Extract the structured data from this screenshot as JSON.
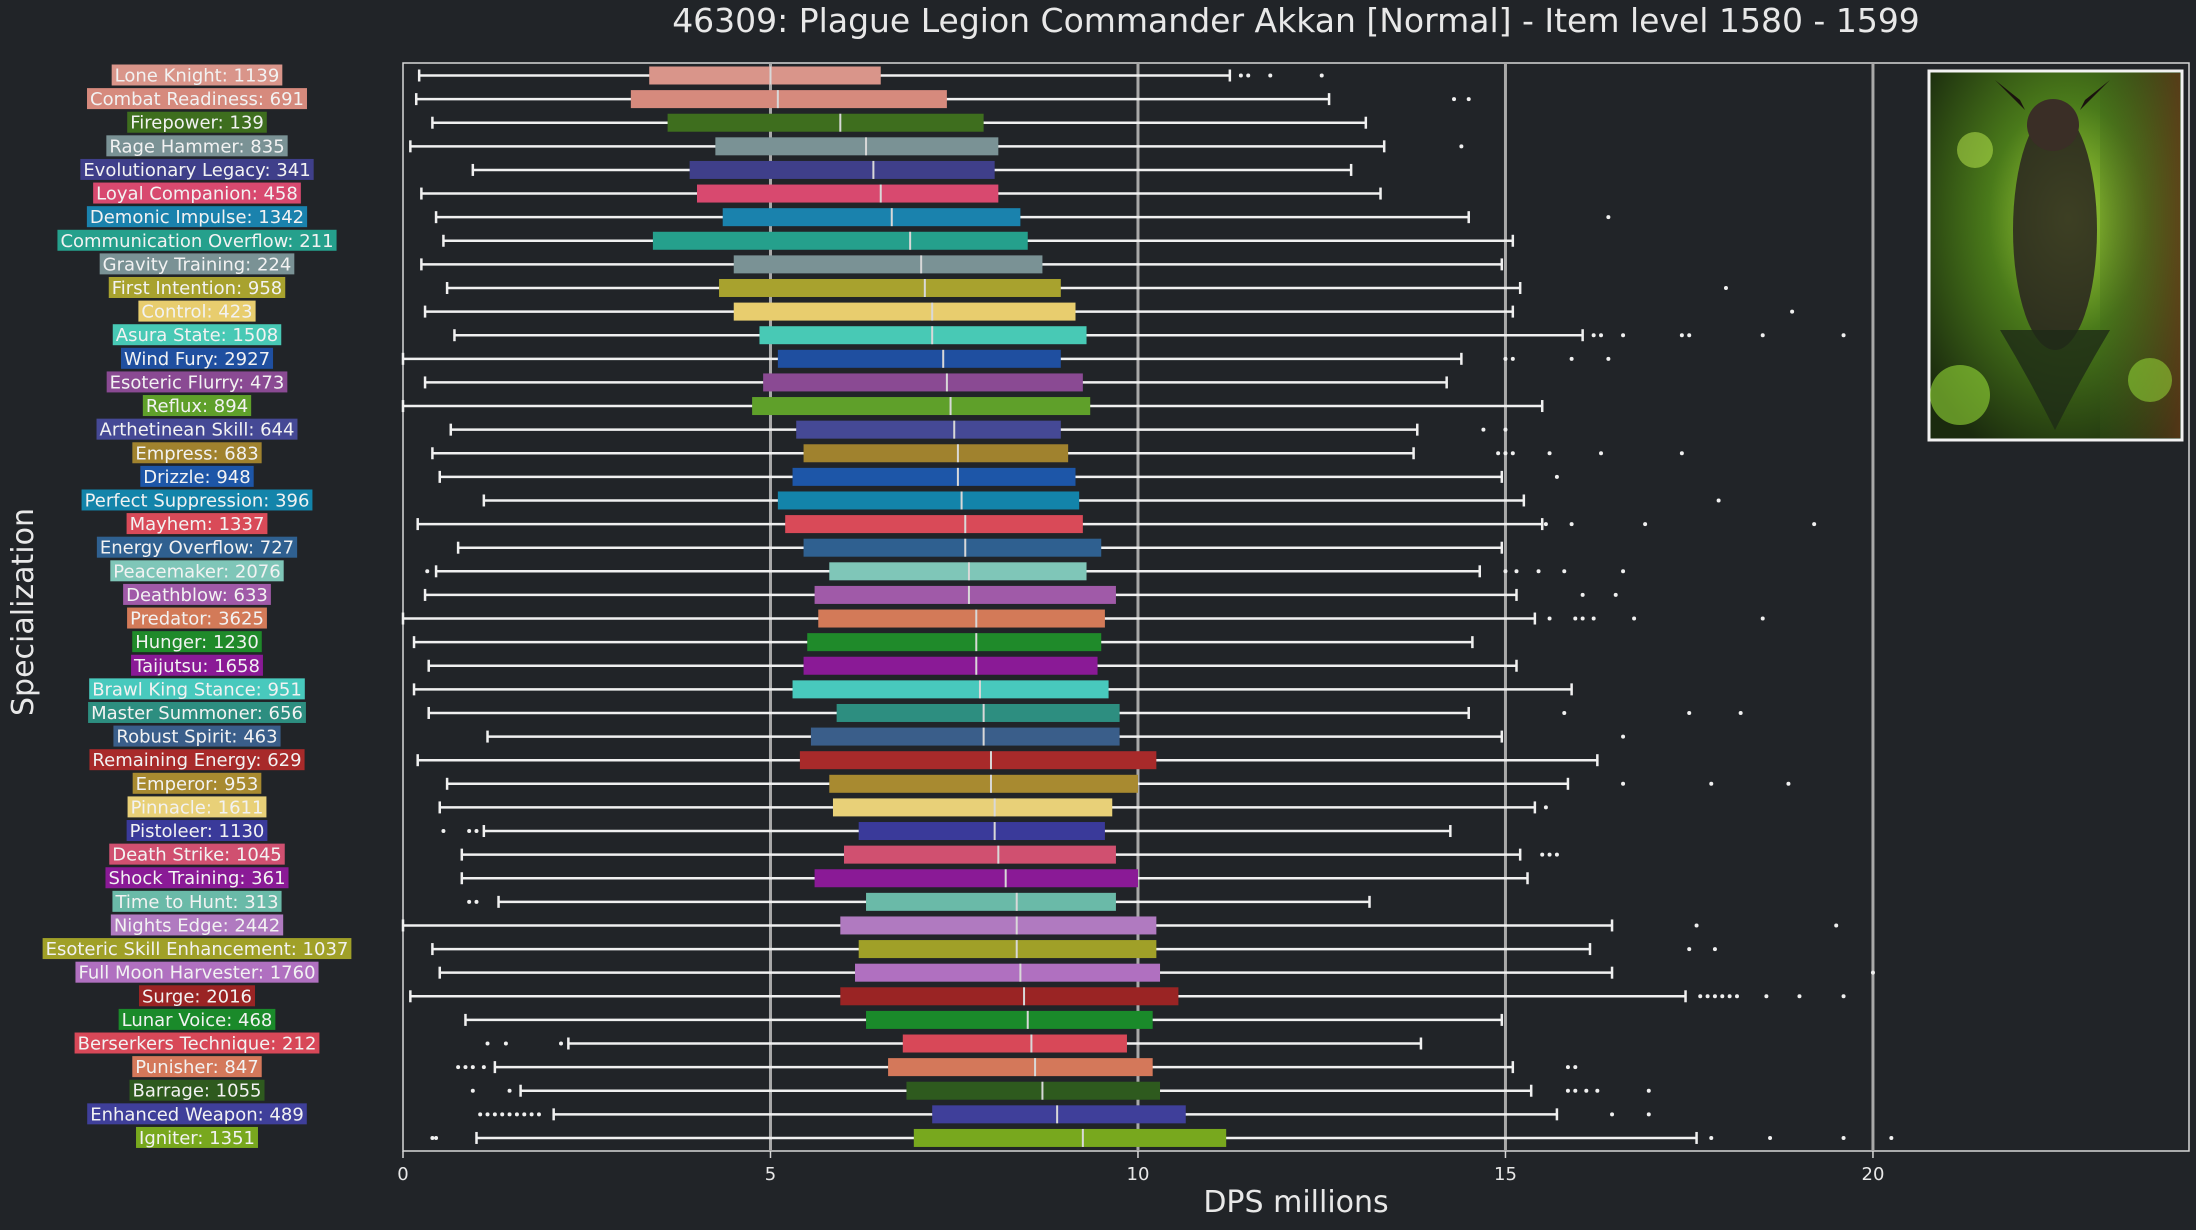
{
  "chart_data": {
    "type": "box",
    "title": "46309: Plague Legion Commander Akkan [Normal] - Item level 1580 - 1599",
    "xlabel": "DPS millions",
    "ylabel": "Specialization",
    "xlim": [
      0,
      24.3
    ],
    "xticks": [
      0,
      5,
      10,
      15,
      20
    ],
    "vlines": [
      5,
      10,
      15,
      20
    ],
    "grid": false,
    "thumbnail": {
      "present": true,
      "position": "top-right",
      "description_icon": "boss-portrait-image"
    },
    "series": [
      {
        "label": "Lone Knight: 1139",
        "color": "#d9958a",
        "q1": 3.35,
        "median": 5.0,
        "q3": 6.5,
        "whisker_low": 0.22,
        "whisker_high": 11.25,
        "outliers": [
          11.4,
          11.5,
          11.8,
          12.5
        ]
      },
      {
        "label": "Combat Readiness: 691",
        "color": "#d68a7d",
        "q1": 3.1,
        "median": 5.1,
        "q3": 7.4,
        "whisker_low": 0.18,
        "whisker_high": 12.6,
        "outliers": [
          14.3,
          14.5
        ]
      },
      {
        "label": "Firepower: 139",
        "color": "#3e6e1e",
        "q1": 3.6,
        "median": 5.95,
        "q3": 7.9,
        "whisker_low": 0.4,
        "whisker_high": 13.1,
        "outliers": []
      },
      {
        "label": "Rage Hammer: 835",
        "color": "#7a9295",
        "q1": 4.25,
        "median": 6.3,
        "q3": 8.1,
        "whisker_low": 0.1,
        "whisker_high": 13.35,
        "outliers": [
          14.4
        ]
      },
      {
        "label": "Evolutionary Legacy: 341",
        "color": "#3f3f8a",
        "q1": 3.9,
        "median": 6.4,
        "q3": 8.05,
        "whisker_low": 0.95,
        "whisker_high": 12.9,
        "outliers": []
      },
      {
        "label": "Loyal Companion: 458",
        "color": "#d8496f",
        "q1": 4.0,
        "median": 6.5,
        "q3": 8.1,
        "whisker_low": 0.25,
        "whisker_high": 13.3,
        "outliers": []
      },
      {
        "label": "Demonic Impulse: 1342",
        "color": "#1a82ad",
        "q1": 4.35,
        "median": 6.65,
        "q3": 8.4,
        "whisker_low": 0.45,
        "whisker_high": 14.5,
        "outliers": [
          16.4
        ]
      },
      {
        "label": "Communication Overflow: 211",
        "color": "#25a08c",
        "q1": 3.4,
        "median": 6.9,
        "q3": 8.5,
        "whisker_low": 0.55,
        "whisker_high": 15.1,
        "outliers": []
      },
      {
        "label": "Gravity Training: 224",
        "color": "#7a9295",
        "q1": 4.5,
        "median": 7.05,
        "q3": 8.7,
        "whisker_low": 0.25,
        "whisker_high": 14.95,
        "outliers": []
      },
      {
        "label": "First Intention: 958",
        "color": "#a8a22e",
        "q1": 4.3,
        "median": 7.1,
        "q3": 8.95,
        "whisker_low": 0.6,
        "whisker_high": 15.2,
        "outliers": [
          18.0
        ]
      },
      {
        "label": "Control: 423",
        "color": "#e8cd6e",
        "q1": 4.5,
        "median": 7.2,
        "q3": 9.15,
        "whisker_low": 0.3,
        "whisker_high": 15.1,
        "outliers": [
          18.9
        ]
      },
      {
        "label": "Asura State: 1508",
        "color": "#48c9b5",
        "q1": 4.85,
        "median": 7.2,
        "q3": 9.3,
        "whisker_low": 0.7,
        "whisker_high": 16.05,
        "outliers": [
          16.2,
          16.3,
          16.6,
          17.4,
          17.5,
          18.5,
          19.6
        ]
      },
      {
        "label": "Wind Fury: 2927",
        "color": "#1f4fa0",
        "q1": 5.1,
        "median": 7.35,
        "q3": 8.95,
        "whisker_low": 0.0,
        "whisker_high": 14.4,
        "outliers": [
          15.0,
          15.1,
          15.9,
          16.4
        ]
      },
      {
        "label": "Esoteric Flurry: 473",
        "color": "#8a4a93",
        "q1": 4.9,
        "median": 7.4,
        "q3": 9.25,
        "whisker_low": 0.3,
        "whisker_high": 14.2,
        "outliers": []
      },
      {
        "label": "Reflux: 894",
        "color": "#5fa02a",
        "q1": 4.75,
        "median": 7.45,
        "q3": 9.35,
        "whisker_low": 0.0,
        "whisker_high": 15.5,
        "outliers": []
      },
      {
        "label": "Arthetinean Skill: 644",
        "color": "#454995",
        "q1": 5.35,
        "median": 7.5,
        "q3": 8.95,
        "whisker_low": 0.65,
        "whisker_high": 13.8,
        "outliers": [
          14.7,
          15.0
        ]
      },
      {
        "label": "Empress: 683",
        "color": "#a0822e",
        "q1": 5.45,
        "median": 7.55,
        "q3": 9.05,
        "whisker_low": 0.4,
        "whisker_high": 13.75,
        "outliers": [
          14.9,
          15.0,
          15.1,
          15.6,
          16.3,
          17.4
        ]
      },
      {
        "label": "Drizzle: 948",
        "color": "#1d56a8",
        "q1": 5.3,
        "median": 7.55,
        "q3": 9.15,
        "whisker_low": 0.5,
        "whisker_high": 14.95,
        "outliers": [
          15.7
        ]
      },
      {
        "label": "Perfect Suppression: 396",
        "color": "#1384aa",
        "q1": 5.1,
        "median": 7.6,
        "q3": 9.2,
        "whisker_low": 1.1,
        "whisker_high": 15.25,
        "outliers": [
          17.9
        ]
      },
      {
        "label": "Mayhem: 1337",
        "color": "#d94a58",
        "q1": 5.2,
        "median": 7.65,
        "q3": 9.25,
        "whisker_low": 0.2,
        "whisker_high": 15.5,
        "outliers": [
          15.55,
          15.9,
          16.9,
          19.2
        ]
      },
      {
        "label": "Energy Overflow: 727",
        "color": "#2f6090",
        "q1": 5.45,
        "median": 7.65,
        "q3": 9.5,
        "whisker_low": 0.75,
        "whisker_high": 14.95,
        "outliers": []
      },
      {
        "label": "Peacemaker: 2076",
        "color": "#7fc6b8",
        "q1": 5.8,
        "median": 7.7,
        "q3": 9.3,
        "whisker_low": 0.45,
        "whisker_high": 14.65,
        "outliers": [
          0.33,
          15.0,
          15.15,
          15.45,
          15.8,
          16.6
        ]
      },
      {
        "label": "Deathblow: 633",
        "color": "#a05aa8",
        "q1": 5.6,
        "median": 7.7,
        "q3": 9.7,
        "whisker_low": 0.3,
        "whisker_high": 15.15,
        "outliers": [
          16.05,
          16.5
        ]
      },
      {
        "label": "Predator: 3625",
        "color": "#d37a58",
        "q1": 5.65,
        "median": 7.8,
        "q3": 9.55,
        "whisker_low": 0.0,
        "whisker_high": 15.4,
        "outliers": [
          15.6,
          15.95,
          16.05,
          16.2,
          16.75,
          18.5
        ]
      },
      {
        "label": "Hunger: 1230",
        "color": "#1f8a2a",
        "q1": 5.5,
        "median": 7.8,
        "q3": 9.5,
        "whisker_low": 0.15,
        "whisker_high": 14.55,
        "outliers": []
      },
      {
        "label": "Taijutsu: 1658",
        "color": "#8a1a96",
        "q1": 5.45,
        "median": 7.8,
        "q3": 9.45,
        "whisker_low": 0.35,
        "whisker_high": 15.15,
        "outliers": []
      },
      {
        "label": "Brawl King Stance: 951",
        "color": "#48c9bd",
        "q1": 5.3,
        "median": 7.85,
        "q3": 9.6,
        "whisker_low": 0.15,
        "whisker_high": 15.9,
        "outliers": []
      },
      {
        "label": "Master Summoner: 656",
        "color": "#2d8e80",
        "q1": 5.9,
        "median": 7.9,
        "q3": 9.75,
        "whisker_low": 0.35,
        "whisker_high": 14.5,
        "outliers": [
          15.8,
          17.5,
          18.2
        ]
      },
      {
        "label": "Robust Spirit: 463",
        "color": "#3a5e8a",
        "q1": 5.55,
        "median": 7.9,
        "q3": 9.75,
        "whisker_low": 1.15,
        "whisker_high": 14.95,
        "outliers": [
          16.6
        ]
      },
      {
        "label": "Remaining Energy: 629",
        "color": "#a82a2a",
        "q1": 5.4,
        "median": 8.0,
        "q3": 10.25,
        "whisker_low": 0.2,
        "whisker_high": 16.25,
        "outliers": []
      },
      {
        "label": "Emperor: 953",
        "color": "#a88a30",
        "q1": 5.8,
        "median": 8.0,
        "q3": 10.0,
        "whisker_low": 0.6,
        "whisker_high": 15.85,
        "outliers": [
          16.6,
          17.8,
          18.85
        ]
      },
      {
        "label": "Pinnacle: 1611",
        "color": "#e8d078",
        "q1": 5.85,
        "median": 8.05,
        "q3": 9.65,
        "whisker_low": 0.5,
        "whisker_high": 15.4,
        "outliers": [
          15.55
        ]
      },
      {
        "label": "Pistoleer: 1130",
        "color": "#3a3a9a",
        "q1": 6.2,
        "median": 8.05,
        "q3": 9.55,
        "whisker_low": 1.1,
        "whisker_high": 14.25,
        "outliers": [
          0.55,
          0.9,
          1.0
        ]
      },
      {
        "label": "Death Strike: 1045",
        "color": "#d05070",
        "q1": 6.0,
        "median": 8.1,
        "q3": 9.7,
        "whisker_low": 0.8,
        "whisker_high": 15.2,
        "outliers": [
          15.5,
          15.6,
          15.7
        ]
      },
      {
        "label": "Shock Training: 361",
        "color": "#8a1a96",
        "q1": 5.6,
        "median": 8.2,
        "q3": 10.0,
        "whisker_low": 0.8,
        "whisker_high": 15.3,
        "outliers": []
      },
      {
        "label": "Time to Hunt: 313",
        "color": "#6abaa8",
        "q1": 6.3,
        "median": 8.35,
        "q3": 9.7,
        "whisker_low": 1.3,
        "whisker_high": 13.15,
        "outliers": [
          0.9,
          1.0
        ]
      },
      {
        "label": "Nights Edge: 2442",
        "color": "#b07ac0",
        "q1": 5.95,
        "median": 8.35,
        "q3": 10.25,
        "whisker_low": 0.0,
        "whisker_high": 16.45,
        "outliers": [
          17.6,
          19.5
        ]
      },
      {
        "label": "Esoteric Skill Enhancement: 1037",
        "color": "#a0a028",
        "q1": 6.2,
        "median": 8.35,
        "q3": 10.25,
        "whisker_low": 0.4,
        "whisker_high": 16.15,
        "outliers": [
          17.5,
          17.85
        ]
      },
      {
        "label": "Full Moon Harvester: 1760",
        "color": "#b070c0",
        "q1": 6.15,
        "median": 8.4,
        "q3": 10.3,
        "whisker_low": 0.5,
        "whisker_high": 16.45,
        "outliers": [
          20.0
        ]
      },
      {
        "label": "Surge: 2016",
        "color": "#9a2424",
        "q1": 5.95,
        "median": 8.45,
        "q3": 10.55,
        "whisker_low": 0.1,
        "whisker_high": 17.45,
        "outliers": [
          17.65,
          17.75,
          17.85,
          17.95,
          18.05,
          18.15,
          18.55,
          19.0,
          19.6
        ]
      },
      {
        "label": "Lunar Voice: 468",
        "color": "#1a8a2a",
        "q1": 6.3,
        "median": 8.5,
        "q3": 10.2,
        "whisker_low": 0.85,
        "whisker_high": 14.95,
        "outliers": []
      },
      {
        "label": "Berserkers Technique: 212",
        "color": "#d84858",
        "q1": 6.8,
        "median": 8.55,
        "q3": 9.85,
        "whisker_low": 2.25,
        "whisker_high": 13.85,
        "outliers": [
          1.15,
          1.4,
          2.15
        ]
      },
      {
        "label": "Punisher: 847",
        "color": "#d4785a",
        "q1": 6.6,
        "median": 8.6,
        "q3": 10.2,
        "whisker_low": 1.25,
        "whisker_high": 15.1,
        "outliers": [
          0.75,
          0.85,
          0.95,
          1.1,
          15.85,
          15.95
        ]
      },
      {
        "label": "Barrage: 1055",
        "color": "#2e5a1e",
        "q1": 6.85,
        "median": 8.7,
        "q3": 10.3,
        "whisker_low": 1.6,
        "whisker_high": 15.35,
        "outliers": [
          0.95,
          1.45,
          15.85,
          15.95,
          16.1,
          16.25,
          16.95
        ]
      },
      {
        "label": "Enhanced Weapon: 489",
        "color": "#3f3f9a",
        "q1": 7.2,
        "median": 8.9,
        "q3": 10.65,
        "whisker_low": 2.05,
        "whisker_high": 15.7,
        "outliers": [
          1.05,
          1.15,
          1.25,
          1.35,
          1.45,
          1.55,
          1.65,
          1.75,
          1.85,
          16.45,
          16.95
        ]
      },
      {
        "label": "Igniter: 1351",
        "color": "#78a81e",
        "q1": 6.95,
        "median": 9.25,
        "q3": 11.2,
        "whisker_low": 1.0,
        "whisker_high": 17.6,
        "outliers": [
          0.4,
          0.45,
          17.8,
          18.6,
          19.6,
          20.25
        ]
      }
    ]
  }
}
